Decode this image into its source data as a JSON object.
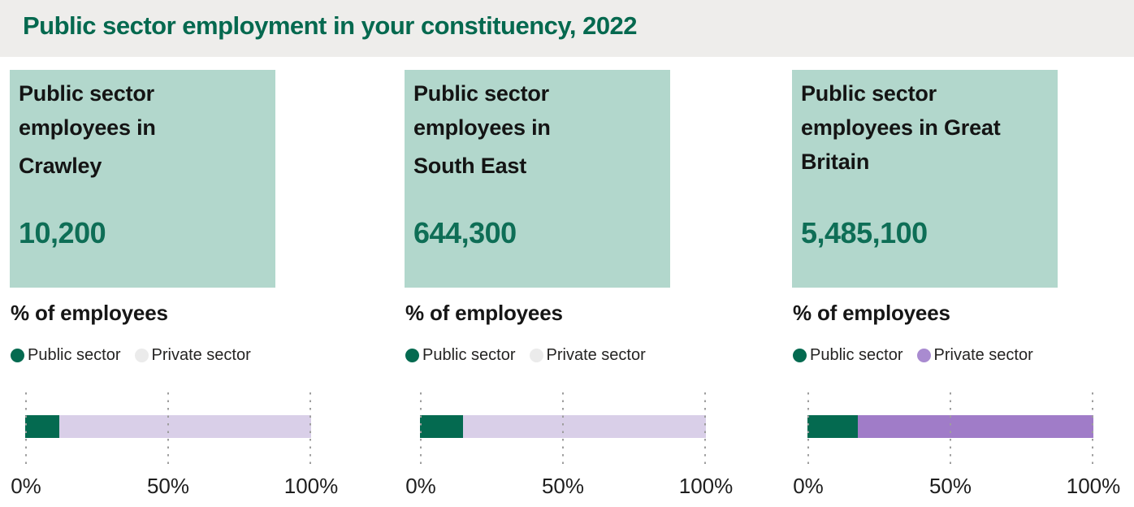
{
  "header": {
    "title": "Public sector employment in your constituency, 2022"
  },
  "colors": {
    "accent-green": "#05694f",
    "value-green": "#0e6e56",
    "card-bg": "#b2d7cc",
    "header-bg": "#eeedeb",
    "grid": "#9e9e9e"
  },
  "chart_data": [
    {
      "type": "bar",
      "layout": "horizontal-stacked",
      "region": "Crawley",
      "headline": {
        "prefix": "Public sector employees in",
        "area": "Crawley",
        "value": "10,200"
      },
      "title": "% of employees",
      "series": [
        {
          "name": "Public sector",
          "value": 12,
          "color": "#046a50"
        },
        {
          "name": "Private sector",
          "value": 88,
          "color": "#d9cfe8"
        }
      ],
      "legend": [
        {
          "label": "Public sector",
          "color": "#046a50"
        },
        {
          "label": "Private sector",
          "color": "#ebebeb"
        }
      ],
      "x_ticks": [
        "0%",
        "50%",
        "100%"
      ],
      "xlim": [
        0,
        100
      ],
      "grid": "dotted-vertical"
    },
    {
      "type": "bar",
      "layout": "horizontal-stacked",
      "region": "South East",
      "headline": {
        "prefix": "Public sector employees in",
        "area": "South East",
        "value": "644,300"
      },
      "title": "% of employees",
      "series": [
        {
          "name": "Public sector",
          "value": 15,
          "color": "#046a50"
        },
        {
          "name": "Private sector",
          "value": 85,
          "color": "#d9cfe8"
        }
      ],
      "legend": [
        {
          "label": "Public sector",
          "color": "#046a50"
        },
        {
          "label": "Private sector",
          "color": "#ebebeb"
        }
      ],
      "x_ticks": [
        "0%",
        "50%",
        "100%"
      ],
      "xlim": [
        0,
        100
      ],
      "grid": "dotted-vertical"
    },
    {
      "type": "bar",
      "layout": "horizontal-stacked",
      "region": "Great Britain",
      "headline": {
        "prefix": "Public sector employees in",
        "area": "Great Britain",
        "value": "5,485,100"
      },
      "title": "% of employees",
      "series": [
        {
          "name": "Public sector",
          "value": 17.5,
          "color": "#046a50"
        },
        {
          "name": "Private sector",
          "value": 82.5,
          "color": "#a07cc8"
        }
      ],
      "legend": [
        {
          "label": "Public sector",
          "color": "#046a50"
        },
        {
          "label": "Private sector",
          "color": "#a98bd0"
        }
      ],
      "x_ticks": [
        "0%",
        "50%",
        "100%"
      ],
      "xlim": [
        0,
        100
      ],
      "grid": "dotted-vertical"
    }
  ]
}
